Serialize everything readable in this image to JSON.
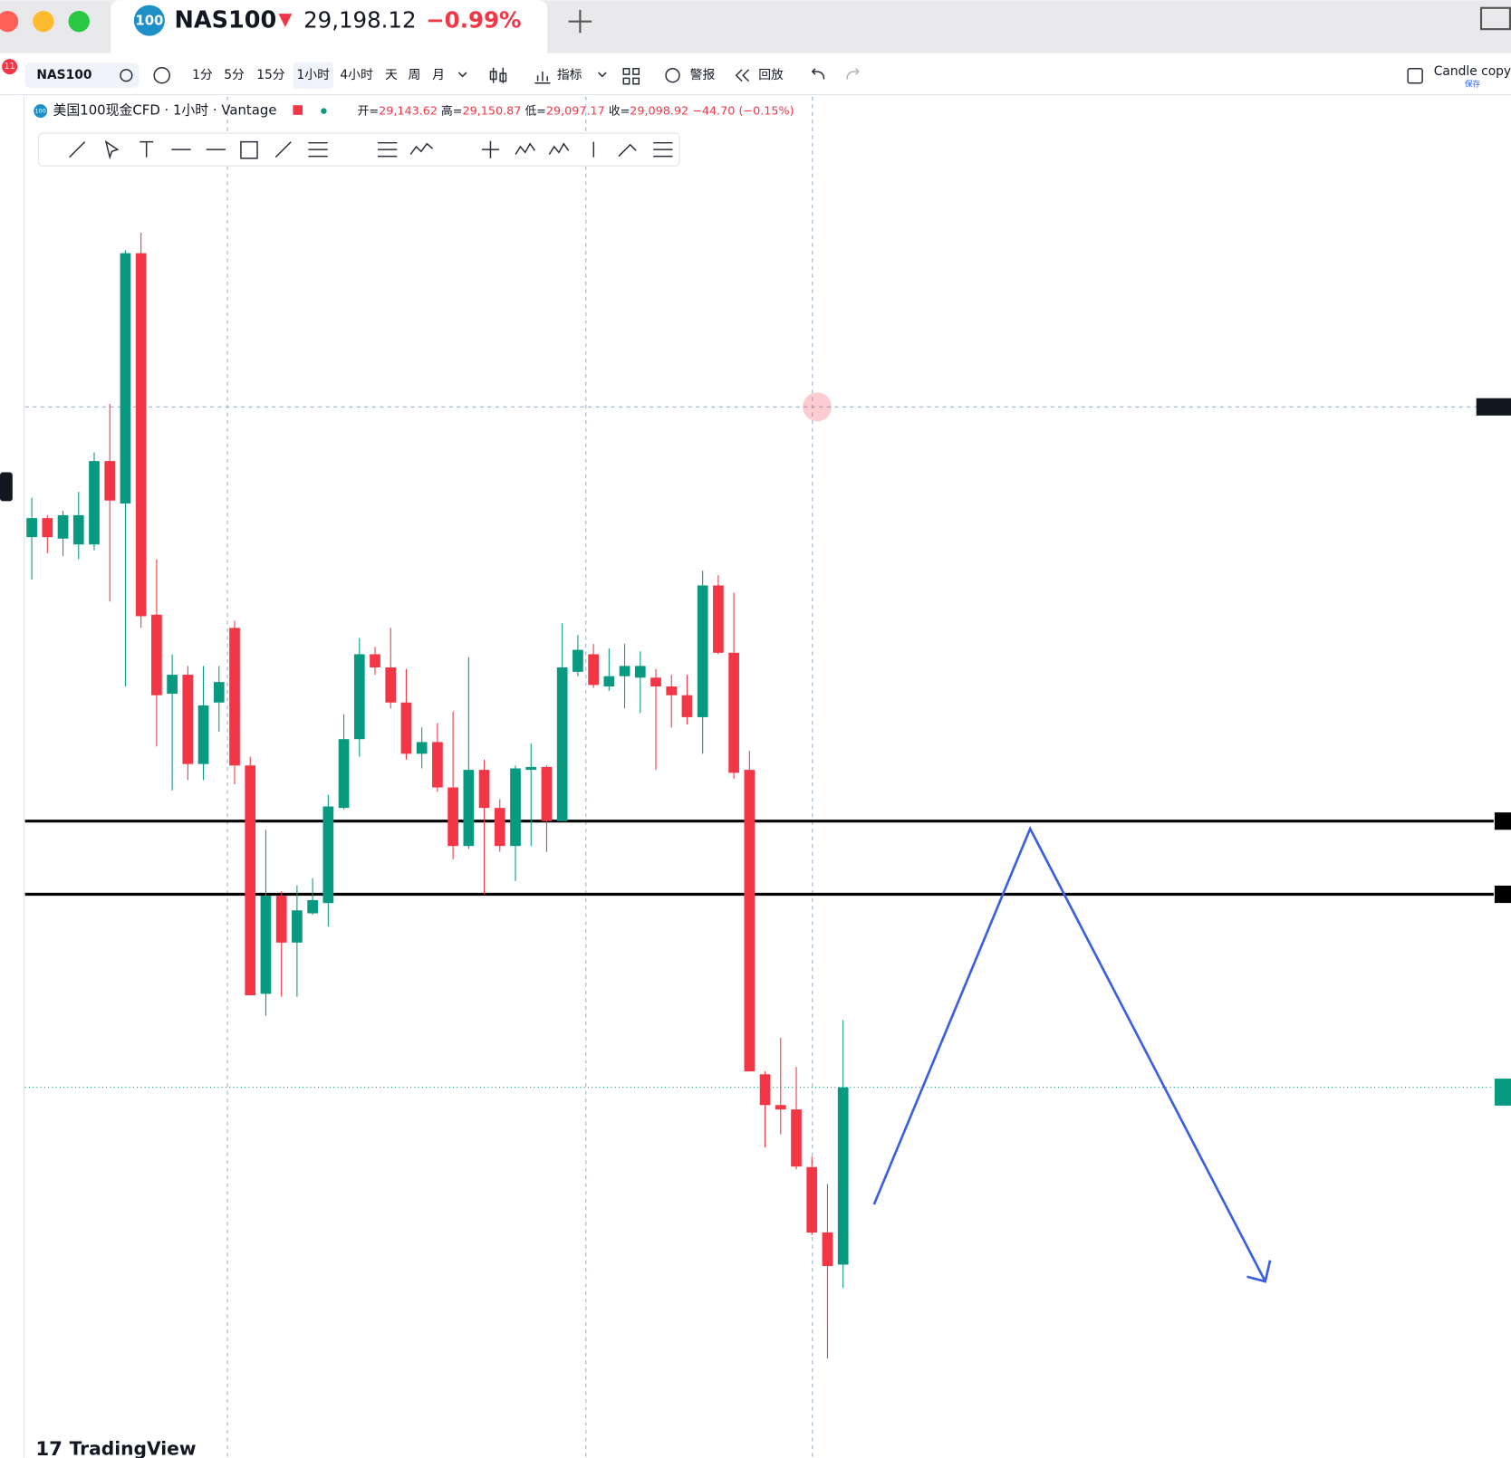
{
  "header": {
    "badge": "100",
    "symbol": "NAS100",
    "price": "29,198.12",
    "change": "−0.99%"
  },
  "toolbar": {
    "symbol": "NAS100",
    "intervals": [
      "1分",
      "5分",
      "15分",
      "1小时",
      "4小时",
      "天",
      "周",
      "月"
    ],
    "indicators": "指标",
    "alerts": "警报",
    "replay": "回放",
    "layout_name": "Candle copy",
    "layout_status": "保存",
    "notifications": "11"
  },
  "legend": {
    "badge": "100",
    "title": "美国100现金CFD · 1小时 · Vantage",
    "open_label": "开=",
    "open": "29,143.62",
    "high_label": "高=",
    "high": "29,150.87",
    "low_label": "低=",
    "low": "29,097.17",
    "close_label": "收=",
    "close": "29,098.92",
    "change": "−44.70 (−0.15%)"
  },
  "watermark": "TradingView",
  "chart_data": {
    "type": "candlestick",
    "up_color": "#089981",
    "down_color": "#f23645",
    "ylim": [
      28947,
      29875
    ],
    "open": [
      29574,
      29587,
      29573,
      29569,
      29569,
      29626,
      29597,
      29768,
      29521,
      29467,
      29480,
      29419,
      29461,
      29512,
      29418,
      29262,
      29329,
      29297,
      29317,
      29324,
      29389,
      29436,
      29494,
      29485,
      29461,
      29426,
      29434,
      29403,
      29363,
      29415,
      29389,
      29363,
      29415,
      29417,
      29380,
      29482,
      29494,
      29472,
      29479,
      29478,
      29478,
      29472,
      29466,
      29451,
      29541,
      29495,
      29415,
      29207,
      29186,
      29183,
      29143.62,
      29099,
      29077
    ],
    "high": [
      29601,
      29589,
      29592,
      29605,
      29632,
      29665,
      29770,
      29782,
      29559,
      29494,
      29486,
      29486,
      29486,
      29517,
      29424,
      29374,
      29332,
      29336,
      29341,
      29398,
      29453,
      29505,
      29499,
      29512,
      29484,
      29444,
      29447,
      29455,
      29492,
      29422,
      29395,
      29418,
      29433,
      29418,
      29515,
      29507,
      29501,
      29498,
      29501,
      29496,
      29484,
      29480,
      29480,
      29551,
      29548,
      29536,
      29428,
      29209,
      29232,
      29212,
      29150.87,
      29132,
      29244
    ],
    "low": [
      29545,
      29563,
      29561,
      29559,
      29565,
      29530,
      29472,
      29512,
      29431,
      29401,
      29408,
      29408,
      29441,
      29405,
      29261,
      29247,
      29260,
      29260,
      29316,
      29308,
      29388,
      29424,
      29480,
      29457,
      29422,
      29416,
      29400,
      29354,
      29361,
      29330,
      29359,
      29339,
      29363,
      29359,
      29380,
      29479,
      29471,
      29469,
      29457,
      29454,
      29415,
      29444,
      29446,
      29426,
      29494,
      29409,
      29209,
      29157,
      29166,
      29142,
      29097.17,
      29013,
      29061
    ],
    "close": [
      29587,
      29574,
      29589,
      29589,
      29626,
      29599,
      29768,
      29520,
      29466,
      29480,
      29419,
      29459,
      29475,
      29418,
      29261,
      29329,
      29297,
      29319,
      29326,
      29390,
      29436,
      29494,
      29485,
      29461,
      29426,
      29434,
      29403,
      29363,
      29415,
      29389,
      29363,
      29416,
      29417,
      29380,
      29485,
      29497,
      29473,
      29479,
      29486,
      29486,
      29472,
      29466,
      29451,
      29541,
      29495,
      29413,
      29209,
      29186,
      29183,
      29144,
      29098.92,
      29076,
      29198.12
    ],
    "horizontal_lines": [
      29380,
      29330
    ],
    "line_color": "#000000",
    "crosshair": 29663,
    "last_price": 29198.12
  }
}
